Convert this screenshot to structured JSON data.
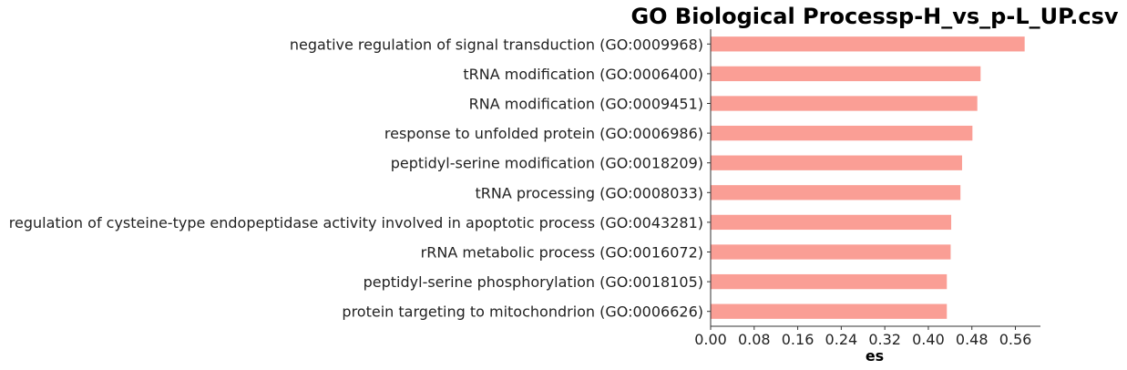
{
  "chart_data": {
    "type": "bar",
    "orientation": "horizontal",
    "title": "GO Biological Processp-H_vs_p-L_UP.csv",
    "xlabel": "es",
    "ylabel": "",
    "categories": [
      "negative regulation of signal transduction (GO:0009968)",
      "tRNA modification (GO:0006400)",
      "RNA modification (GO:0009451)",
      "response to unfolded protein (GO:0006986)",
      "peptidyl-serine modification (GO:0018209)",
      "tRNA processing (GO:0008033)",
      "regulation of cysteine-type endopeptidase activity involved in apoptotic process (GO:0043281)",
      "rRNA metabolic process (GO:0016072)",
      "peptidyl-serine phosphorylation (GO:0018105)",
      "protein targeting to mitochondrion (GO:0006626)"
    ],
    "values": [
      0.577,
      0.496,
      0.49,
      0.481,
      0.462,
      0.459,
      0.442,
      0.441,
      0.434,
      0.434
    ],
    "xlim": [
      0,
      0.606
    ],
    "xticks": [
      "0.00",
      "0.08",
      "0.16",
      "0.24",
      "0.32",
      "0.40",
      "0.48",
      "0.56"
    ],
    "bar_color": "#fa9e95",
    "axis_color": "#333333",
    "grid": false,
    "legend": "none"
  }
}
